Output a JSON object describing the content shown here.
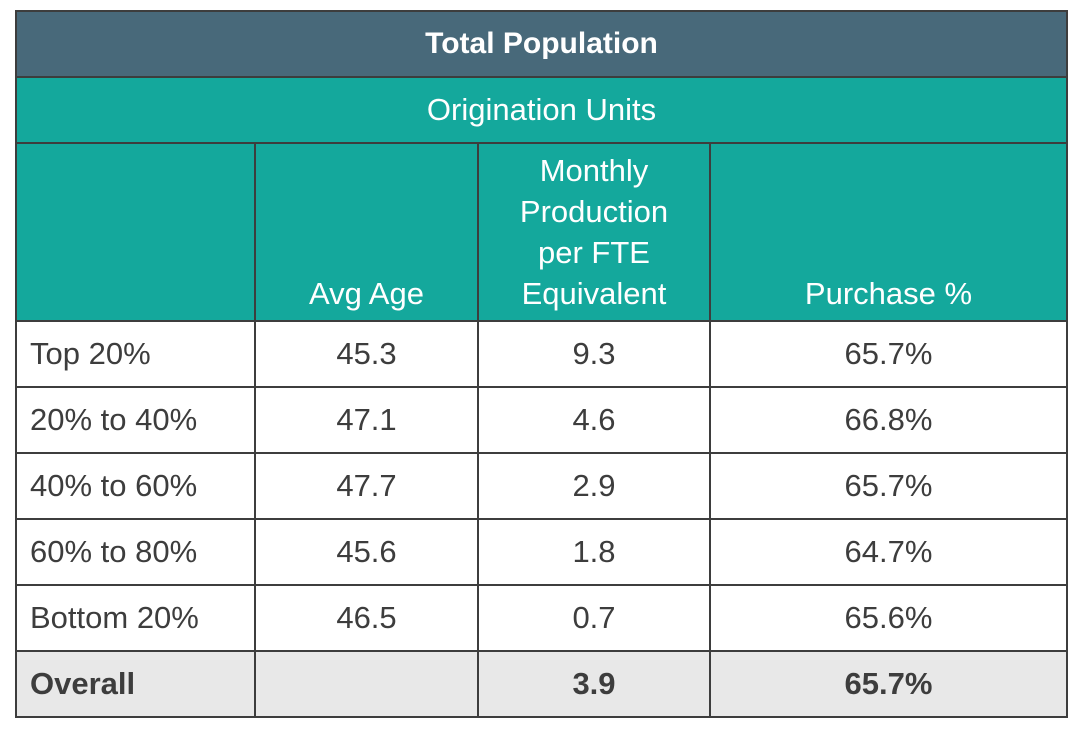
{
  "table": {
    "title": "Total Population",
    "subtitle": "Origination Units",
    "headers": [
      "",
      "Avg Age",
      [
        "Monthly",
        "Production",
        "per FTE",
        "Equivalent"
      ],
      "Purchase %"
    ],
    "rows": [
      {
        "label": "Top 20%",
        "avg_age": "45.3",
        "monthly": "9.3",
        "purchase": "65.7%"
      },
      {
        "label": "20% to 40%",
        "avg_age": "47.1",
        "monthly": "4.6",
        "purchase": "66.8%"
      },
      {
        "label": "40% to 60%",
        "avg_age": "47.7",
        "monthly": "2.9",
        "purchase": "65.7%"
      },
      {
        "label": "60% to 80%",
        "avg_age": "45.6",
        "monthly": "1.8",
        "purchase": "64.7%"
      },
      {
        "label": "Bottom 20%",
        "avg_age": "46.5",
        "monthly": "0.7",
        "purchase": "65.6%"
      }
    ],
    "total": {
      "label": "Overall",
      "avg_age": "",
      "monthly": "3.9",
      "purchase": "65.7%"
    }
  },
  "colors": {
    "title_bg": "#48697a",
    "header_bg": "#14a89c",
    "total_bg": "#e8e8e8",
    "border": "#3d3d3d"
  }
}
